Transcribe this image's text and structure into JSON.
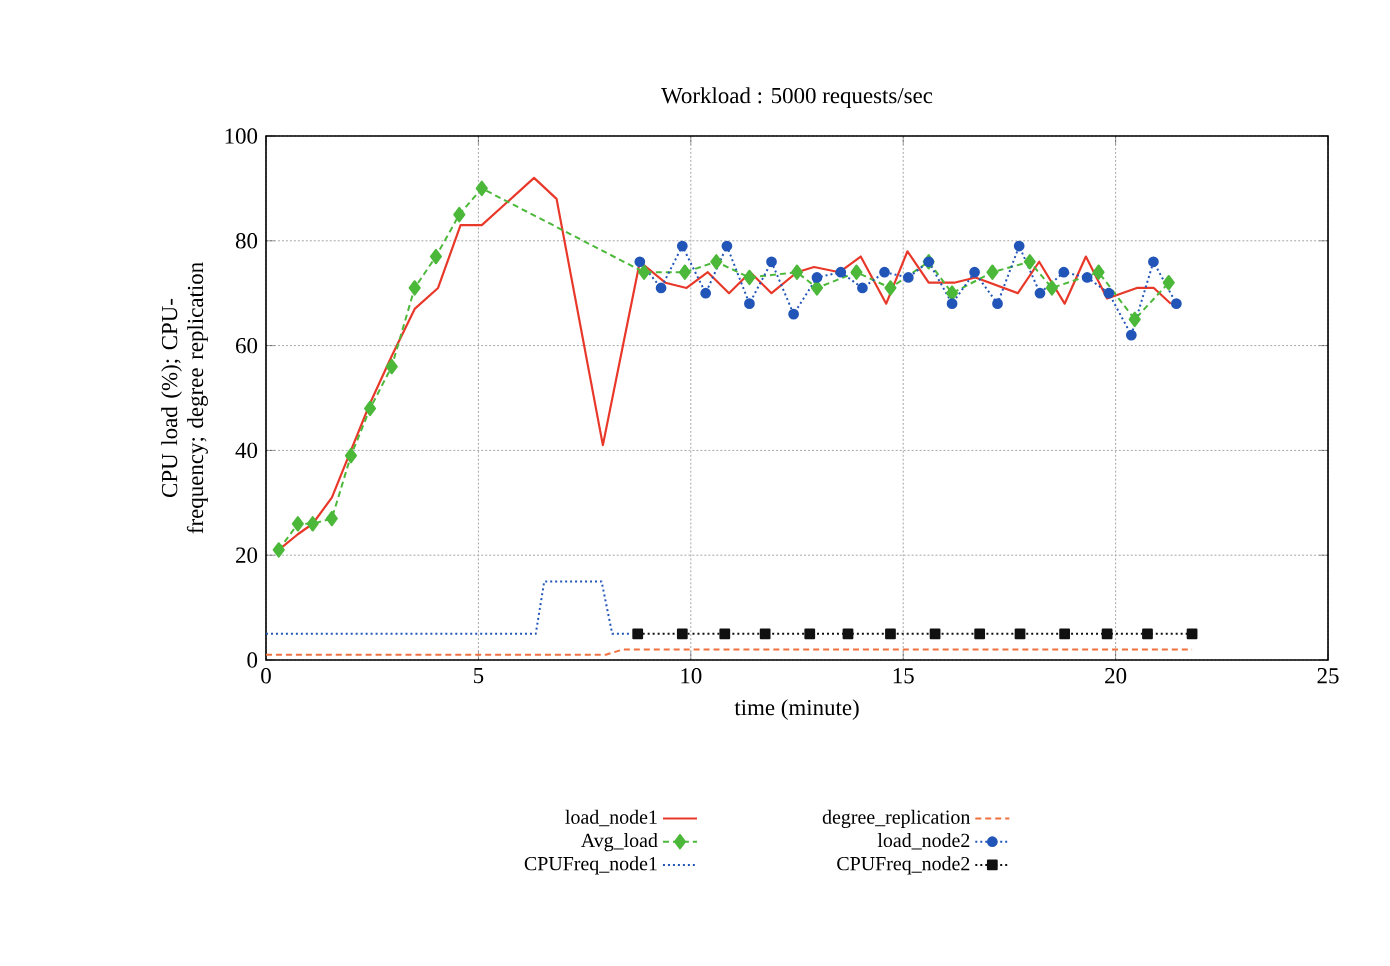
{
  "chart_data": {
    "type": "line",
    "title": "Workload : 5000 requests/sec",
    "xlabel": "time (minute)",
    "ylabel": "CPU load (%); CPU-frequency; degree replication",
    "xlim": [
      0,
      25
    ],
    "ylim": [
      0,
      100
    ],
    "xticks": [
      0,
      5,
      10,
      15,
      20,
      25
    ],
    "yticks": [
      0,
      20,
      40,
      60,
      80,
      100
    ],
    "grid": true,
    "legend": "bottom",
    "series": [
      {
        "name": "load_node1",
        "color": "#e8382a",
        "line_style": "solid",
        "marker": "none",
        "x": [
          0.3,
          0.75,
          1.1,
          1.55,
          2.0,
          2.45,
          2.96,
          3.5,
          4.05,
          4.58,
          5.08,
          6.31,
          6.84,
          7.93,
          8.8,
          9.4,
          9.9,
          10.4,
          10.9,
          11.4,
          11.9,
          12.5,
          12.9,
          13.5,
          14.0,
          14.6,
          15.1,
          15.6,
          16.2,
          16.7,
          17.7,
          18.2,
          18.8,
          19.3,
          19.8,
          20.5,
          20.9,
          21.3
        ],
        "values": [
          21,
          24,
          26,
          31,
          40,
          49,
          58,
          67,
          71,
          83,
          83,
          92,
          88,
          41,
          76,
          72,
          71,
          74,
          70,
          74,
          70,
          74,
          75,
          74,
          77,
          68,
          78,
          72,
          72,
          73,
          70,
          76,
          68,
          77,
          69,
          71,
          71,
          68
        ]
      },
      {
        "name": "Avg_load",
        "color": "#4cb83a",
        "line_style": "dashed",
        "marker": "diamond",
        "x": [
          0.3,
          0.75,
          1.1,
          1.55,
          2.0,
          2.45,
          2.96,
          3.5,
          4.0,
          4.55,
          5.08,
          8.9,
          9.86,
          10.6,
          11.38,
          12.5,
          12.97,
          13.9,
          14.7,
          15.6,
          16.15,
          17.1,
          17.98,
          18.5,
          19.6,
          20.45,
          21.25
        ],
        "values": [
          21,
          26,
          26,
          27,
          39,
          48,
          56,
          71,
          77,
          85,
          90,
          74,
          74,
          76,
          73,
          74,
          71,
          74,
          71,
          76,
          70,
          74,
          76,
          71,
          74,
          65,
          72
        ]
      },
      {
        "name": "CPUFreq_node1",
        "color": "#2255b8",
        "line_style": "dotted",
        "marker": "none",
        "x": [
          0,
          6.35,
          6.55,
          7.9,
          8.15,
          8.6
        ],
        "values": [
          5,
          5,
          15,
          15,
          5,
          5
        ]
      },
      {
        "name": "degree_replication",
        "color": "#f07040",
        "line_style": "dashed",
        "marker": "none",
        "x": [
          0,
          8.0,
          8.4,
          21.8
        ],
        "values": [
          1,
          1,
          2,
          2
        ]
      },
      {
        "name": "load_node2",
        "color": "#2255b8",
        "line_style": "dotted",
        "marker": "circle",
        "x": [
          8.8,
          9.3,
          9.8,
          10.35,
          10.85,
          11.38,
          11.9,
          12.42,
          12.97,
          13.53,
          14.04,
          14.56,
          15.12,
          15.6,
          16.15,
          16.68,
          17.22,
          17.73,
          18.22,
          18.78,
          19.33,
          19.84,
          20.37,
          20.89,
          21.43
        ],
        "values": [
          76,
          71,
          79,
          70,
          79,
          68,
          76,
          66,
          73,
          74,
          71,
          74,
          73,
          76,
          68,
          74,
          68,
          79,
          70,
          74,
          73,
          70,
          62,
          76,
          68
        ]
      },
      {
        "name": "CPUFreq_node2",
        "color": "#111111",
        "line_style": "dotted",
        "marker": "square",
        "x": [
          8.75,
          9.8,
          10.8,
          11.75,
          12.8,
          13.7,
          14.7,
          15.75,
          16.8,
          17.75,
          18.8,
          19.8,
          20.75,
          21.8
        ],
        "values": [
          5,
          5,
          5,
          5,
          5,
          5,
          5,
          5,
          5,
          5,
          5,
          5,
          5,
          5
        ]
      }
    ]
  }
}
